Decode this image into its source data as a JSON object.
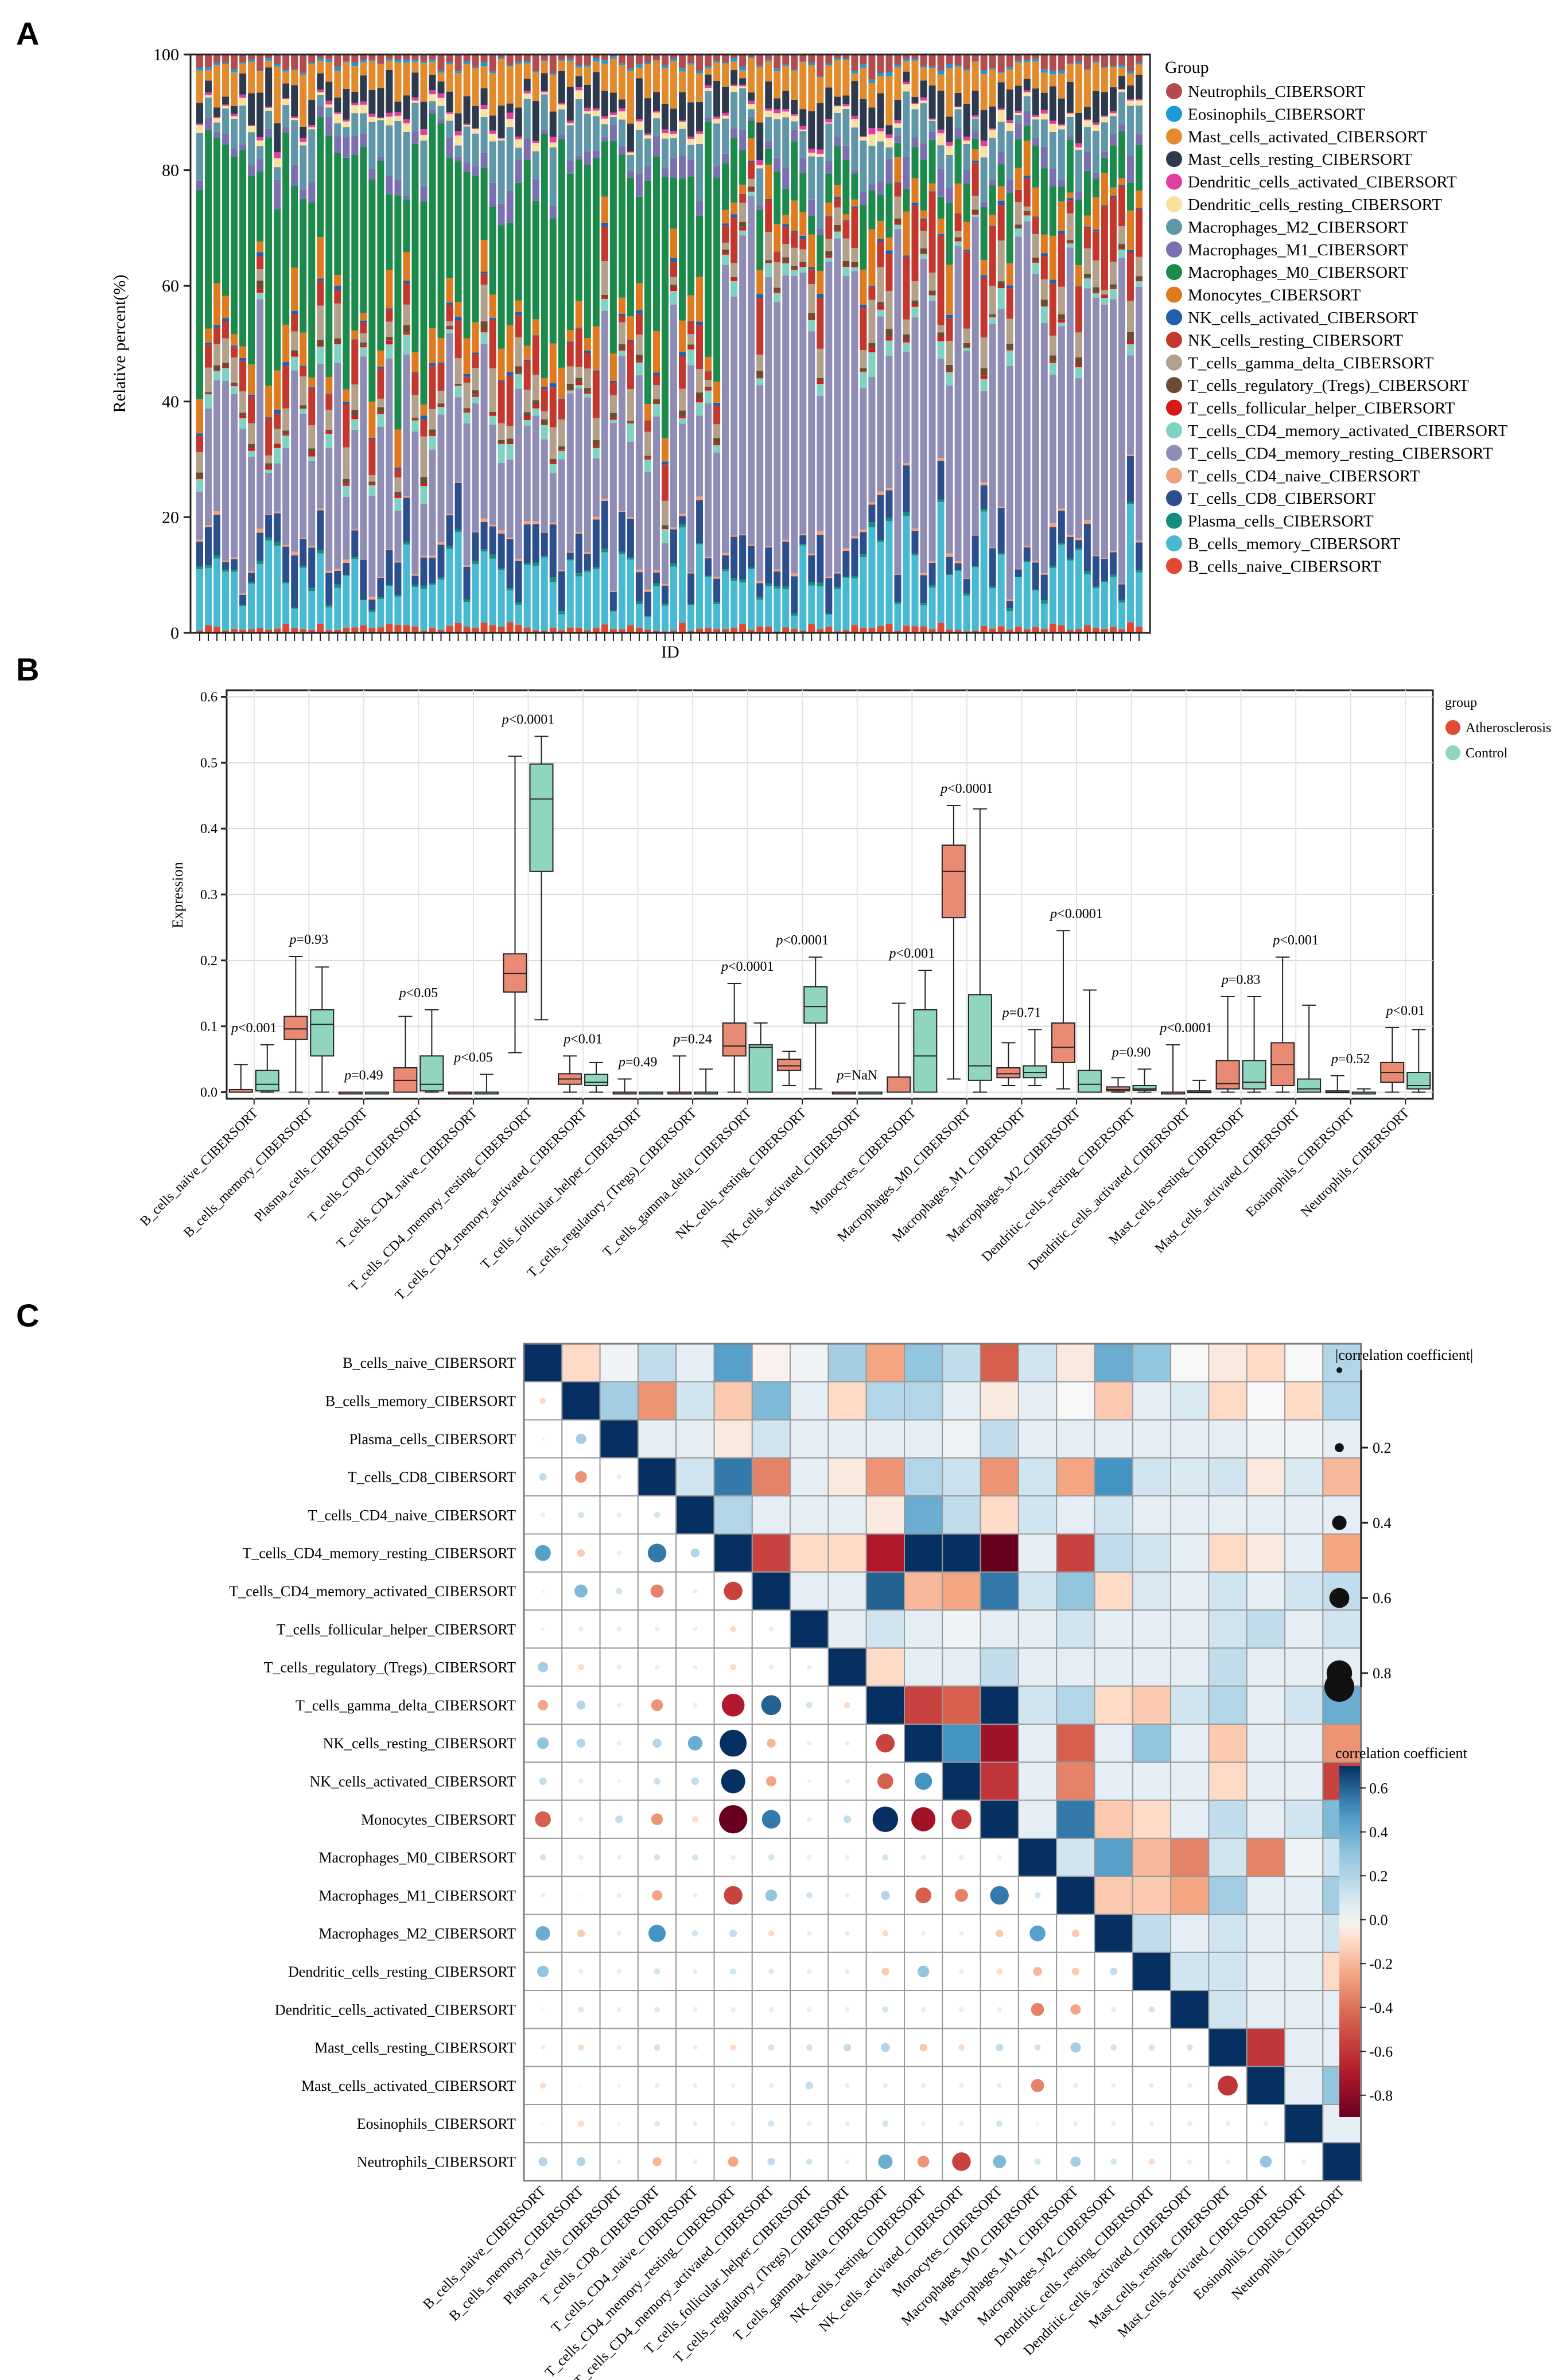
{
  "panels": {
    "a": "A",
    "b": "B",
    "c": "C"
  },
  "cells": [
    "B_cells_naive_CIBERSORT",
    "B_cells_memory_CIBERSORT",
    "Plasma_cells_CIBERSORT",
    "T_cells_CD8_CIBERSORT",
    "T_cells_CD4_naive_CIBERSORT",
    "T_cells_CD4_memory_resting_CIBERSORT",
    "T_cells_CD4_memory_activated_CIBERSORT",
    "T_cells_follicular_helper_CIBERSORT",
    "T_cells_regulatory_(Tregs)_CIBERSORT",
    "T_cells_gamma_delta_CIBERSORT",
    "NK_cells_resting_CIBERSORT",
    "NK_cells_activated_CIBERSORT",
    "Monocytes_CIBERSORT",
    "Macrophages_M0_CIBERSORT",
    "Macrophages_M1_CIBERSORT",
    "Macrophages_M2_CIBERSORT",
    "Dendritic_cells_resting_CIBERSORT",
    "Dendritic_cells_activated_CIBERSORT",
    "Mast_cells_resting_CIBERSORT",
    "Mast_cells_activated_CIBERSORT",
    "Eosinophils_CIBERSORT",
    "Neutrophils_CIBERSORT"
  ],
  "chart_data": [
    {
      "type": "bar",
      "stacked": true,
      "title": "",
      "xlabel": "ID",
      "ylabel": "Relative percent(%)",
      "ylim": [
        0,
        100
      ],
      "yticks": [
        "0",
        "20",
        "40",
        "60",
        "80",
        "100"
      ],
      "n_samples": 110,
      "legend_title": "Group",
      "legend_position": "right",
      "series": [
        {
          "name": "Neutrophils_CIBERSORT",
          "color": "#b54b4d",
          "mean": 1.5
        },
        {
          "name": "Eosinophils_CIBERSORT",
          "color": "#1a9ad6",
          "mean": 0.3
        },
        {
          "name": "Mast_cells_activated_CIBERSORT",
          "color": "#e38b2c",
          "mean": 4.0
        },
        {
          "name": "Mast_cells_resting_CIBERSORT",
          "color": "#2d3a4e",
          "mean": 3.5
        },
        {
          "name": "Dendritic_cells_activated_CIBERSORT",
          "color": "#e23ca1",
          "mean": 0.4
        },
        {
          "name": "Dendritic_cells_resting_CIBERSORT",
          "color": "#f9e19d",
          "mean": 0.8
        },
        {
          "name": "Macrophages_M2_CIBERSORT",
          "color": "#5f97a8",
          "mean": 5.0
        },
        {
          "name": "Macrophages_M1_CIBERSORT",
          "color": "#7a6fb0",
          "mean": 2.0
        },
        {
          "name": "Macrophages_M0_CIBERSORT",
          "color": "#1b8a4a",
          "mean": 18.0
        },
        {
          "name": "Monocytes_CIBERSORT",
          "color": "#e07a1f",
          "mean": 4.0
        },
        {
          "name": "NK_cells_activated_CIBERSORT",
          "color": "#1e5fae",
          "mean": 0.3
        },
        {
          "name": "NK_cells_resting_CIBERSORT",
          "color": "#c4372d",
          "mean": 5.0
        },
        {
          "name": "T_cells_gamma_delta_CIBERSORT",
          "color": "#b3a08b",
          "mean": 3.0
        },
        {
          "name": "T_cells_regulatory_(Tregs)_CIBERSORT",
          "color": "#6e4b2e",
          "mean": 0.6
        },
        {
          "name": "T_cells_follicular_helper_CIBERSORT",
          "color": "#d7191c",
          "mean": 0.3
        },
        {
          "name": "T_cells_CD4_memory_activated_CIBERSORT",
          "color": "#7fd1c1",
          "mean": 1.5
        },
        {
          "name": "T_cells_CD4_memory_resting_CIBERSORT",
          "color": "#8f8db5",
          "mean": 26.0
        },
        {
          "name": "T_cells_CD4_naive_CIBERSORT",
          "color": "#f2a07b",
          "mean": 0.3
        },
        {
          "name": "T_cells_CD8_CIBERSORT",
          "color": "#2b4f8e",
          "mean": 4.0
        },
        {
          "name": "Plasma_cells_CIBERSORT",
          "color": "#148f7e",
          "mean": 0.3
        },
        {
          "name": "B_cells_memory_CIBERSORT",
          "color": "#47b9d2",
          "mean": 8.0
        },
        {
          "name": "B_cells_naive_CIBERSORT",
          "color": "#e0492f",
          "mean": 0.8
        }
      ]
    },
    {
      "type": "box",
      "title": "",
      "xlabel": "",
      "ylabel": "Expression",
      "ylim": [
        -0.01,
        0.61
      ],
      "yticks": [
        "0.0",
        "0.1",
        "0.2",
        "0.3",
        "0.4",
        "0.5",
        "0.6"
      ],
      "legend_title": "group",
      "legend_position": "right",
      "groups": [
        {
          "name": "Atherosclerosis",
          "color": "#e98a74"
        },
        {
          "name": "Control",
          "color": "#8fd5bf"
        }
      ],
      "pvalues": [
        "p<0.001",
        "p=0.93",
        "p=0.49",
        "p<0.05",
        "p<0.05",
        "p<0.0001",
        "p<0.01",
        "p=0.49",
        "p=0.24",
        "p<0.0001",
        "p<0.0001",
        "p=NaN",
        "p<0.001",
        "p<0.0001",
        "p=0.71",
        "p<0.0001",
        "p=0.90",
        "p<0.0001",
        "p=0.83",
        "p<0.001",
        "p=0.52",
        "p<0.01"
      ],
      "boxes": [
        [
          [
            0,
            0,
            0,
            0.004,
            0.042
          ],
          [
            0,
            0.002,
            0.012,
            0.033,
            0.072
          ]
        ],
        [
          [
            0,
            0.08,
            0.096,
            0.115,
            0.206
          ],
          [
            0,
            0.055,
            0.103,
            0.125,
            0.19
          ]
        ],
        [
          [
            0,
            0,
            0,
            0,
            0
          ],
          [
            0,
            0,
            0,
            0,
            0
          ]
        ],
        [
          [
            0,
            0,
            0.018,
            0.037,
            0.115
          ],
          [
            0,
            0.002,
            0.012,
            0.055,
            0.125
          ]
        ],
        [
          [
            0,
            0,
            0,
            0,
            0
          ],
          [
            0,
            0,
            0,
            0,
            0.027
          ]
        ],
        [
          [
            0.06,
            0.152,
            0.18,
            0.21,
            0.51
          ],
          [
            0.11,
            0.335,
            0.445,
            0.498,
            0.54
          ]
        ],
        [
          [
            0,
            0.012,
            0.02,
            0.028,
            0.055
          ],
          [
            0,
            0.01,
            0.015,
            0.027,
            0.045
          ]
        ],
        [
          [
            0,
            0,
            0,
            0,
            0.02
          ],
          [
            0,
            0,
            0,
            0,
            0
          ]
        ],
        [
          [
            0,
            0,
            0,
            0,
            0.055
          ],
          [
            0,
            0,
            0,
            0,
            0.035
          ]
        ],
        [
          [
            0,
            0.055,
            0.07,
            0.105,
            0.165
          ],
          [
            0,
            0,
            0.068,
            0.072,
            0.105
          ]
        ],
        [
          [
            0.01,
            0.033,
            0.04,
            0.05,
            0.062
          ],
          [
            0.005,
            0.105,
            0.13,
            0.16,
            0.205
          ]
        ],
        [
          [
            0,
            0,
            0,
            0,
            0
          ],
          [
            0,
            0,
            0,
            0,
            0
          ]
        ],
        [
          [
            0,
            0,
            0,
            0.023,
            0.135
          ],
          [
            0,
            0,
            0.055,
            0.125,
            0.185
          ]
        ],
        [
          [
            0.02,
            0.265,
            0.335,
            0.375,
            0.435
          ],
          [
            0,
            0.018,
            0.04,
            0.148,
            0.43
          ]
        ],
        [
          [
            0.01,
            0.022,
            0.028,
            0.037,
            0.075
          ],
          [
            0.01,
            0.022,
            0.03,
            0.04,
            0.095
          ]
        ],
        [
          [
            0.005,
            0.045,
            0.068,
            0.105,
            0.245
          ],
          [
            0,
            0,
            0.012,
            0.033,
            0.155
          ]
        ],
        [
          [
            0,
            0.002,
            0.004,
            0.008,
            0.022
          ],
          [
            0,
            0.003,
            0.005,
            0.01,
            0.035
          ]
        ],
        [
          [
            0,
            0,
            0,
            0,
            0.072
          ],
          [
            0,
            0,
            0,
            0.002,
            0.018
          ]
        ],
        [
          [
            0,
            0.005,
            0.013,
            0.048,
            0.145
          ],
          [
            0,
            0.005,
            0.015,
            0.048,
            0.145
          ]
        ],
        [
          [
            0,
            0.01,
            0.042,
            0.075,
            0.205
          ],
          [
            0,
            0,
            0.005,
            0.02,
            0.132
          ]
        ],
        [
          [
            0,
            0,
            0,
            0.002,
            0.025
          ],
          [
            0,
            0,
            0,
            0,
            0.005
          ]
        ],
        [
          [
            0,
            0.015,
            0.03,
            0.045,
            0.098
          ],
          [
            0,
            0.005,
            0.01,
            0.03,
            0.095
          ]
        ]
      ]
    },
    {
      "type": "heatmap",
      "title": "",
      "upper": "color-filled squares (coefficient)",
      "lower": "circles (size = |coefficient|)",
      "size_legend_title": "|correlation coefficient|",
      "size_legend_ticks": [
        "0.2",
        "0.4",
        "0.6",
        "0.8"
      ],
      "color_legend_title": "correlation coefficient",
      "color_legend_ticks": [
        "0.6",
        "0.4",
        "0.2",
        "0.0",
        "-0.2",
        "-0.4",
        "-0.6",
        "-0.8"
      ],
      "color_range": [
        -0.9,
        0.7
      ],
      "matrix": [
        [
          1,
          -0.1,
          0.02,
          0.15,
          0.05,
          0.45,
          -0.02,
          0.02,
          0.25,
          -0.25,
          0.3,
          0.15,
          -0.45,
          0.1,
          -0.05,
          0.4,
          0.3,
          0,
          -0.05,
          -0.1,
          0,
          0.2
        ],
        [
          -0.1,
          1,
          0.25,
          -0.3,
          0.1,
          -0.15,
          0.35,
          0.05,
          -0.1,
          0.2,
          0.2,
          0.05,
          -0.05,
          0.05,
          0,
          -0.15,
          0.05,
          0.08,
          -0.1,
          0,
          -0.1,
          0.2
        ],
        [
          0.02,
          0.25,
          1,
          0.05,
          0.05,
          -0.05,
          0.1,
          0.05,
          0.05,
          0.05,
          0.05,
          0.02,
          0.15,
          0.05,
          0.05,
          0.05,
          0.05,
          0.05,
          0.05,
          0.02,
          0.02,
          0.05
        ],
        [
          0.15,
          -0.3,
          0.05,
          1,
          0.1,
          0.55,
          -0.35,
          0.05,
          -0.05,
          -0.3,
          0.2,
          0.12,
          -0.3,
          0.1,
          -0.25,
          0.5,
          0.1,
          0.08,
          0.1,
          -0.05,
          0.08,
          -0.2
        ],
        [
          0.05,
          0.1,
          0.05,
          0.1,
          1,
          0.2,
          0.05,
          0.05,
          0.05,
          -0.05,
          0.4,
          0.15,
          -0.1,
          0.1,
          0.05,
          0.1,
          0.05,
          0.05,
          0.05,
          0.05,
          0.05,
          0.05
        ],
        [
          0.45,
          -0.15,
          -0.05,
          0.55,
          0.2,
          1,
          -0.55,
          -0.1,
          -0.1,
          -0.7,
          0.85,
          0.75,
          -0.9,
          0.05,
          -0.55,
          0.15,
          0.1,
          0.05,
          -0.1,
          -0.05,
          0.05,
          -0.25
        ],
        [
          -0.02,
          0.35,
          0.1,
          -0.35,
          0.05,
          -0.55,
          1,
          0.05,
          0.05,
          0.6,
          -0.2,
          -0.25,
          0.55,
          0.1,
          0.3,
          -0.1,
          0.08,
          0.05,
          0.1,
          0.05,
          0.1,
          0.15
        ],
        [
          0.02,
          0.05,
          0.05,
          0.05,
          0.05,
          -0.1,
          0.05,
          1,
          0.05,
          0.1,
          0.05,
          0.02,
          0.05,
          0.05,
          0.1,
          0.05,
          0.05,
          0.05,
          0.1,
          0.15,
          0.05,
          0.1
        ],
        [
          0.25,
          -0.1,
          0.05,
          -0.05,
          0.05,
          -0.1,
          0.05,
          0.05,
          1,
          -0.1,
          0.05,
          0.05,
          0.15,
          0.05,
          0.05,
          0.05,
          0.05,
          0.05,
          0.15,
          0.05,
          0.05,
          0.05
        ],
        [
          -0.25,
          0.2,
          0.05,
          -0.3,
          -0.05,
          -0.7,
          0.6,
          0.1,
          -0.1,
          1,
          -0.55,
          -0.45,
          0.8,
          0.1,
          0.2,
          -0.1,
          -0.15,
          0.1,
          0.2,
          0.05,
          0.1,
          0.4
        ],
        [
          0.3,
          0.2,
          0.05,
          0.2,
          0.4,
          0.85,
          -0.2,
          0.05,
          0.05,
          -0.55,
          1,
          0.5,
          -0.75,
          0.05,
          -0.45,
          0.05,
          0.3,
          0.05,
          -0.15,
          0.05,
          0.05,
          -0.3
        ],
        [
          0.15,
          0.05,
          0.02,
          0.12,
          0.15,
          0.75,
          -0.25,
          0.02,
          0.05,
          -0.45,
          0.5,
          1,
          -0.6,
          0.05,
          -0.35,
          0.05,
          0.05,
          0.05,
          -0.1,
          0.05,
          0.05,
          -0.55
        ],
        [
          -0.45,
          -0.05,
          0.15,
          -0.3,
          -0.1,
          -0.9,
          0.55,
          0.05,
          0.15,
          0.8,
          -0.75,
          -0.6,
          1,
          0.05,
          0.55,
          -0.15,
          -0.1,
          0.05,
          0.15,
          0.05,
          0.1,
          0.35
        ],
        [
          0.1,
          0.05,
          0.05,
          0.1,
          0.1,
          0.05,
          0.1,
          0.05,
          0.05,
          0.1,
          0.05,
          0.05,
          0.05,
          1,
          0.1,
          0.45,
          -0.2,
          -0.35,
          0.1,
          -0.35,
          0.02,
          0.1
        ],
        [
          -0.05,
          0,
          0.05,
          -0.25,
          0.05,
          -0.55,
          0.3,
          0.1,
          0.05,
          0.2,
          -0.45,
          -0.35,
          0.55,
          0.1,
          1,
          -0.15,
          -0.15,
          -0.25,
          0.25,
          0.05,
          0.05,
          0.25
        ],
        [
          0.4,
          -0.15,
          0.05,
          0.5,
          0.1,
          0.15,
          -0.1,
          0.05,
          0.05,
          -0.1,
          0.05,
          0.05,
          -0.15,
          0.45,
          -0.15,
          1,
          0.15,
          0.05,
          0.1,
          0.05,
          0.05,
          0.1
        ],
        [
          0.3,
          0.05,
          0.05,
          0.1,
          0.05,
          0.1,
          0.08,
          0.05,
          0.05,
          -0.15,
          0.3,
          0.05,
          -0.1,
          -0.2,
          -0.15,
          0.15,
          1,
          0.1,
          0.1,
          0.05,
          0.05,
          -0.1
        ],
        [
          0,
          0.08,
          0.05,
          0.08,
          0.05,
          0.05,
          0.05,
          0.05,
          0.05,
          0.1,
          0.05,
          0.05,
          0.05,
          -0.35,
          -0.25,
          0.05,
          0.1,
          1,
          0.1,
          0.05,
          0.05,
          0.05
        ],
        [
          -0.05,
          -0.1,
          0.05,
          0.1,
          0.05,
          -0.1,
          0.1,
          0.1,
          0.15,
          0.2,
          -0.15,
          -0.1,
          0.15,
          0.1,
          0.25,
          0.1,
          0.1,
          0.1,
          1,
          -0.6,
          0.05,
          0.05
        ],
        [
          -0.1,
          0,
          0.02,
          -0.05,
          0.05,
          -0.05,
          0.05,
          0.15,
          0.05,
          0.05,
          0.05,
          0.05,
          0.05,
          -0.35,
          0.05,
          0.05,
          0.05,
          0.05,
          -0.6,
          1,
          0.05,
          0.3
        ],
        [
          0,
          -0.1,
          0.02,
          0.08,
          0.05,
          0.05,
          0.1,
          0.05,
          0.05,
          0.1,
          0.05,
          0.05,
          0.1,
          0.02,
          0.05,
          0.05,
          0.05,
          0.05,
          0.05,
          0.05,
          1,
          0.05
        ],
        [
          0.2,
          0.2,
          0.05,
          -0.2,
          0.05,
          -0.25,
          0.15,
          0.1,
          0.05,
          0.4,
          -0.3,
          -0.55,
          0.35,
          0.1,
          0.25,
          0.1,
          -0.1,
          0.05,
          0.05,
          0.3,
          0.05,
          1
        ]
      ]
    }
  ]
}
